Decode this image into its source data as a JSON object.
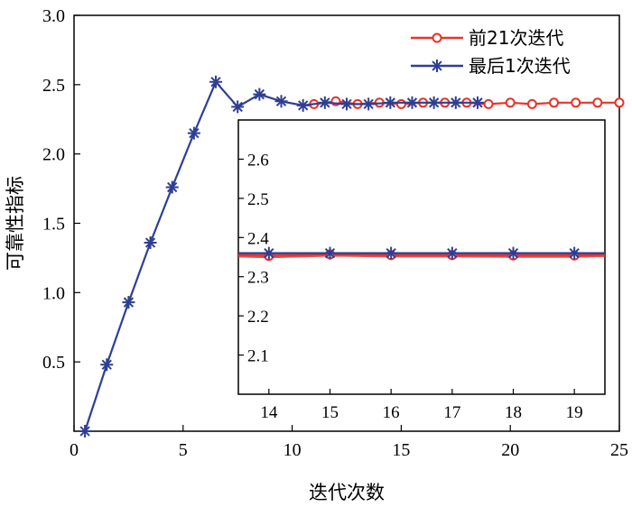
{
  "chart_data": [
    {
      "type": "line",
      "xlabel": "迭代次数",
      "ylabel": "可靠性指标",
      "xlim": [
        0,
        25
      ],
      "ylim": [
        0,
        3.0
      ],
      "x_ticks": [
        "0",
        "5",
        "10",
        "15",
        "20",
        "25"
      ],
      "y_ticks": [
        "0.5",
        "1.0",
        "1.5",
        "2.0",
        "2.5",
        "3.0"
      ],
      "legend": {
        "position": "top-right"
      },
      "series": [
        {
          "name": "前21次迭代",
          "color": "#e8332a",
          "marker": "circle",
          "x": [
            11,
            12,
            13,
            14,
            15,
            16,
            17,
            18,
            19,
            20,
            21,
            22,
            23,
            24,
            25
          ],
          "y": [
            2.36,
            2.38,
            2.36,
            2.37,
            2.36,
            2.37,
            2.37,
            2.37,
            2.36,
            2.37,
            2.36,
            2.37,
            2.37,
            2.37,
            2.37
          ]
        },
        {
          "name": "最后1次迭代",
          "color": "#2e3f94",
          "marker": "asterisk",
          "x": [
            0.5,
            1.5,
            2.5,
            3.5,
            4.5,
            5.5,
            6.5,
            7.5,
            8.5,
            9.5,
            10.5,
            11.5,
            12.5,
            13.5,
            14.5,
            15.5,
            16.5,
            17.5,
            18.5
          ],
          "y": [
            0,
            0.48,
            0.93,
            1.36,
            1.76,
            2.15,
            2.52,
            2.34,
            2.43,
            2.38,
            2.35,
            2.37,
            2.36,
            2.36,
            2.37,
            2.37,
            2.37,
            2.37,
            2.37
          ]
        }
      ]
    },
    {
      "type": "line",
      "title": "",
      "xlim": [
        13.5,
        19.5
      ],
      "ylim": [
        2.0,
        2.7
      ],
      "x_ticks": [
        "14",
        "15",
        "16",
        "17",
        "18",
        "19"
      ],
      "y_ticks": [
        "2.1",
        "2.2",
        "2.3",
        "2.4",
        "2.5",
        "2.6"
      ],
      "series": [
        {
          "name": "前21次迭代",
          "color": "#e8332a",
          "marker": "circle",
          "x": [
            13.5,
            14,
            15,
            16,
            17,
            18,
            19,
            19.5
          ],
          "y": [
            2.355,
            2.353,
            2.357,
            2.355,
            2.355,
            2.354,
            2.354,
            2.356
          ]
        },
        {
          "name": "最后1次迭代",
          "color": "#2e3f94",
          "marker": "asterisk",
          "x": [
            13.5,
            14,
            15,
            16,
            17,
            18,
            19,
            19.5
          ],
          "y": [
            2.36,
            2.36,
            2.36,
            2.36,
            2.36,
            2.36,
            2.36,
            2.36
          ]
        }
      ]
    }
  ]
}
